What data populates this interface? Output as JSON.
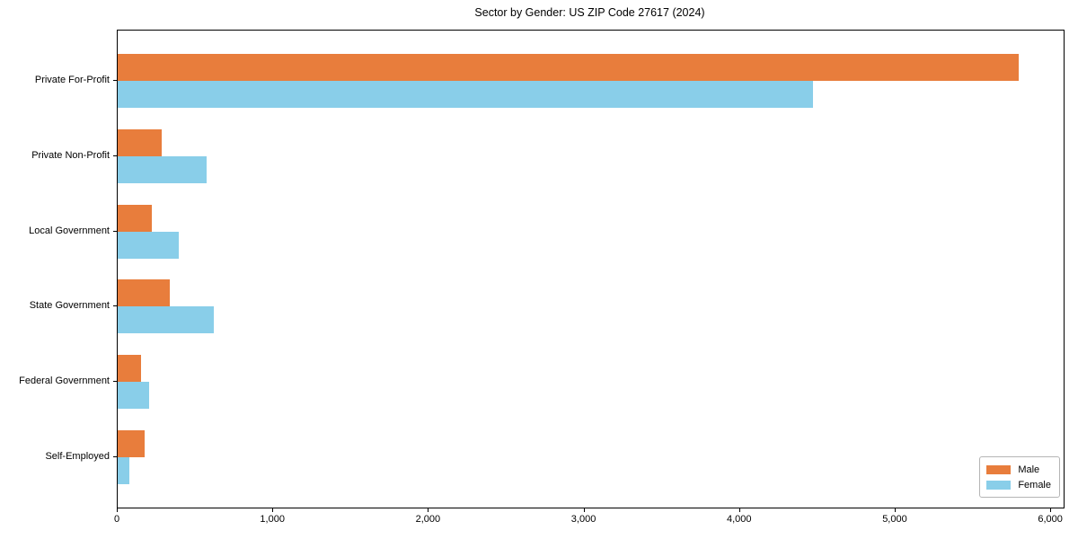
{
  "chart_data": {
    "type": "bar",
    "orientation": "horizontal",
    "title": "Sector by Gender: US ZIP Code 27617 (2024)",
    "categories": [
      "Private For-Profit",
      "Private Non-Profit",
      "Local Government",
      "State Government",
      "Federal Government",
      "Self-Employed"
    ],
    "series": [
      {
        "name": "Male",
        "color": "#e87d3c",
        "values": [
          5790,
          285,
          220,
          335,
          150,
          175
        ]
      },
      {
        "name": "Female",
        "color": "#89cee9",
        "values": [
          4470,
          570,
          390,
          620,
          200,
          75
        ]
      }
    ],
    "xlabel": "",
    "ylabel": "",
    "xlim": [
      0,
      6080
    ],
    "xticks": [
      0,
      1000,
      2000,
      3000,
      4000,
      5000,
      6000
    ],
    "xtick_labels": [
      "0",
      "1,000",
      "2,000",
      "3,000",
      "4,000",
      "5,000",
      "6,000"
    ],
    "legend": {
      "position": "lower right",
      "entries": [
        "Male",
        "Female"
      ]
    },
    "grid": false
  }
}
